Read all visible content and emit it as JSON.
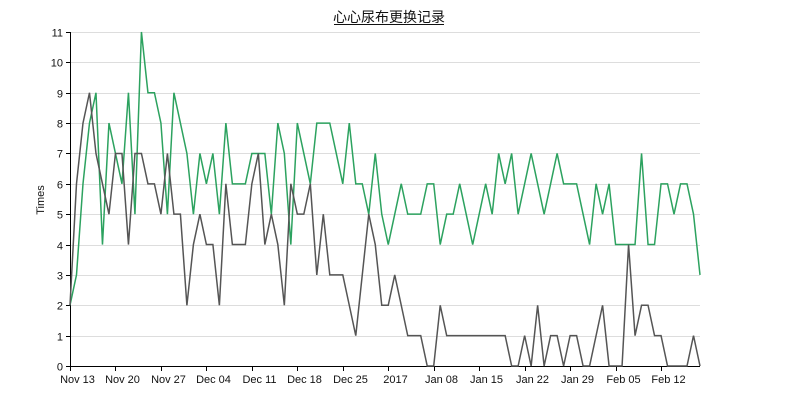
{
  "chart_data": {
    "type": "line",
    "title": "心心尿布更换记录",
    "xlabel": "",
    "ylabel": "Times",
    "ylim": [
      0,
      11
    ],
    "y_ticks": [
      "0",
      "1",
      "2",
      "3",
      "4",
      "5",
      "6",
      "7",
      "8",
      "9",
      "10",
      "11"
    ],
    "x_tick_labels": [
      "Nov 13",
      "Nov 20",
      "Nov 27",
      "Dec 04",
      "Dec 11",
      "Dec 18",
      "Dec 25",
      "2017",
      "Jan 08",
      "Jan 15",
      "Jan 22",
      "Jan 29",
      "Feb 05",
      "Feb 12"
    ],
    "x_range_days": [
      0,
      97
    ],
    "grid": "horizontal",
    "legend": "none",
    "series": [
      {
        "color": "#2ca25f",
        "values": [
          2,
          3,
          6,
          8,
          9,
          4,
          8,
          7,
          6,
          9,
          5,
          11,
          9,
          9,
          8,
          5,
          9,
          8,
          7,
          5,
          7,
          6,
          7,
          5,
          8,
          6,
          6,
          6,
          7,
          7,
          7,
          5,
          8,
          7,
          4,
          8,
          7,
          6,
          8,
          8,
          8,
          7,
          6,
          8,
          6,
          6,
          5,
          7,
          5,
          4,
          5,
          6,
          5,
          5,
          5,
          6,
          6,
          4,
          5,
          5,
          6,
          5,
          4,
          5,
          6,
          5,
          7,
          6,
          7,
          5,
          6,
          7,
          6,
          5,
          6,
          7,
          6,
          6,
          6,
          5,
          4,
          6,
          5,
          6,
          4,
          4,
          4,
          4,
          7,
          4,
          4,
          6,
          6,
          5,
          6,
          6,
          5,
          3
        ]
      },
      {
        "color": "#555555",
        "values": [
          2,
          6,
          8,
          9,
          7,
          6,
          5,
          7,
          7,
          4,
          7,
          7,
          6,
          6,
          5,
          7,
          5,
          5,
          2,
          4,
          5,
          4,
          4,
          2,
          6,
          4,
          4,
          4,
          6,
          7,
          4,
          5,
          4,
          2,
          6,
          5,
          5,
          6,
          3,
          5,
          3,
          3,
          3,
          2,
          1,
          3,
          5,
          4,
          2,
          2,
          3,
          2,
          1,
          1,
          1,
          0,
          0,
          2,
          1,
          1,
          1,
          1,
          1,
          1,
          1,
          1,
          1,
          1,
          0,
          0,
          1,
          0,
          2,
          0,
          1,
          1,
          0,
          1,
          1,
          0,
          0,
          1,
          2,
          0,
          0,
          0,
          4,
          1,
          2,
          2,
          1,
          1,
          0,
          0,
          0,
          0,
          1,
          0
        ]
      }
    ]
  }
}
